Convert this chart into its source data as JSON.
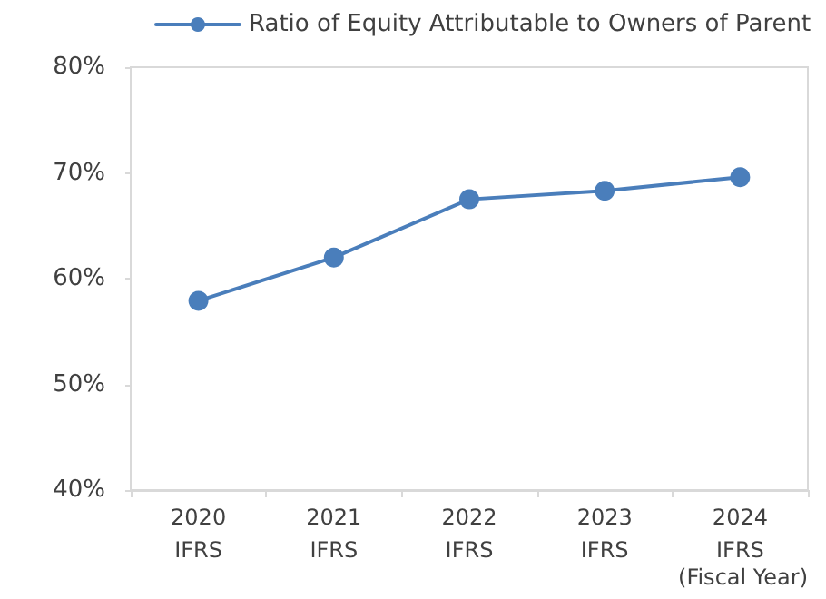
{
  "chart_data": {
    "type": "line",
    "xlabel": "(Fiscal Year)",
    "categories": [
      "2020\nIFRS",
      "2021\nIFRS",
      "2022\nIFRS",
      "2023\nIFRS",
      "2024\nIFRS"
    ],
    "series": [
      {
        "name": "Ratio of Equity Attributable to Owners of Parent",
        "color": "#4a7ebb",
        "values": [
          57.9,
          62.0,
          67.5,
          68.3,
          69.6
        ]
      }
    ],
    "ylim": [
      40,
      80
    ],
    "yticks": [
      {
        "value": 40,
        "label": "40%"
      },
      {
        "value": 50,
        "label": "50%"
      },
      {
        "value": 60,
        "label": "60%"
      },
      {
        "value": 70,
        "label": "70%"
      },
      {
        "value": 80,
        "label": "80%"
      }
    ],
    "grid": false,
    "legend": "top",
    "marker": "circle",
    "line_style": "solid"
  }
}
